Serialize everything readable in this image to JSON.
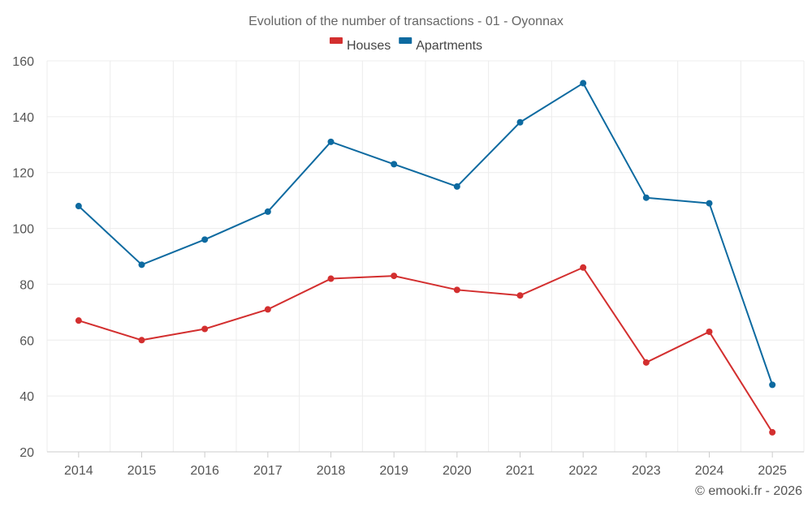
{
  "chart_data": {
    "type": "line",
    "title": "Evolution of the number of transactions - 01 - Oyonnax",
    "categories": [
      "2014",
      "2015",
      "2016",
      "2017",
      "2018",
      "2019",
      "2020",
      "2021",
      "2022",
      "2023",
      "2024",
      "2025"
    ],
    "series": [
      {
        "name": "Houses",
        "color": "#d32f2f",
        "values": [
          67,
          60,
          64,
          71,
          82,
          83,
          78,
          76,
          86,
          52,
          63,
          27
        ]
      },
      {
        "name": "Apartments",
        "color": "#0d6aa0",
        "values": [
          108,
          87,
          96,
          106,
          131,
          123,
          115,
          138,
          152,
          111,
          109,
          44
        ]
      }
    ],
    "y_ticks": [
      20,
      40,
      60,
      80,
      100,
      120,
      140,
      160
    ],
    "ylim": [
      20,
      160
    ],
    "xlabel": "",
    "ylabel": "",
    "grid": true,
    "legend_position": "top-center",
    "credit": "© emooki.fr - 2026"
  }
}
